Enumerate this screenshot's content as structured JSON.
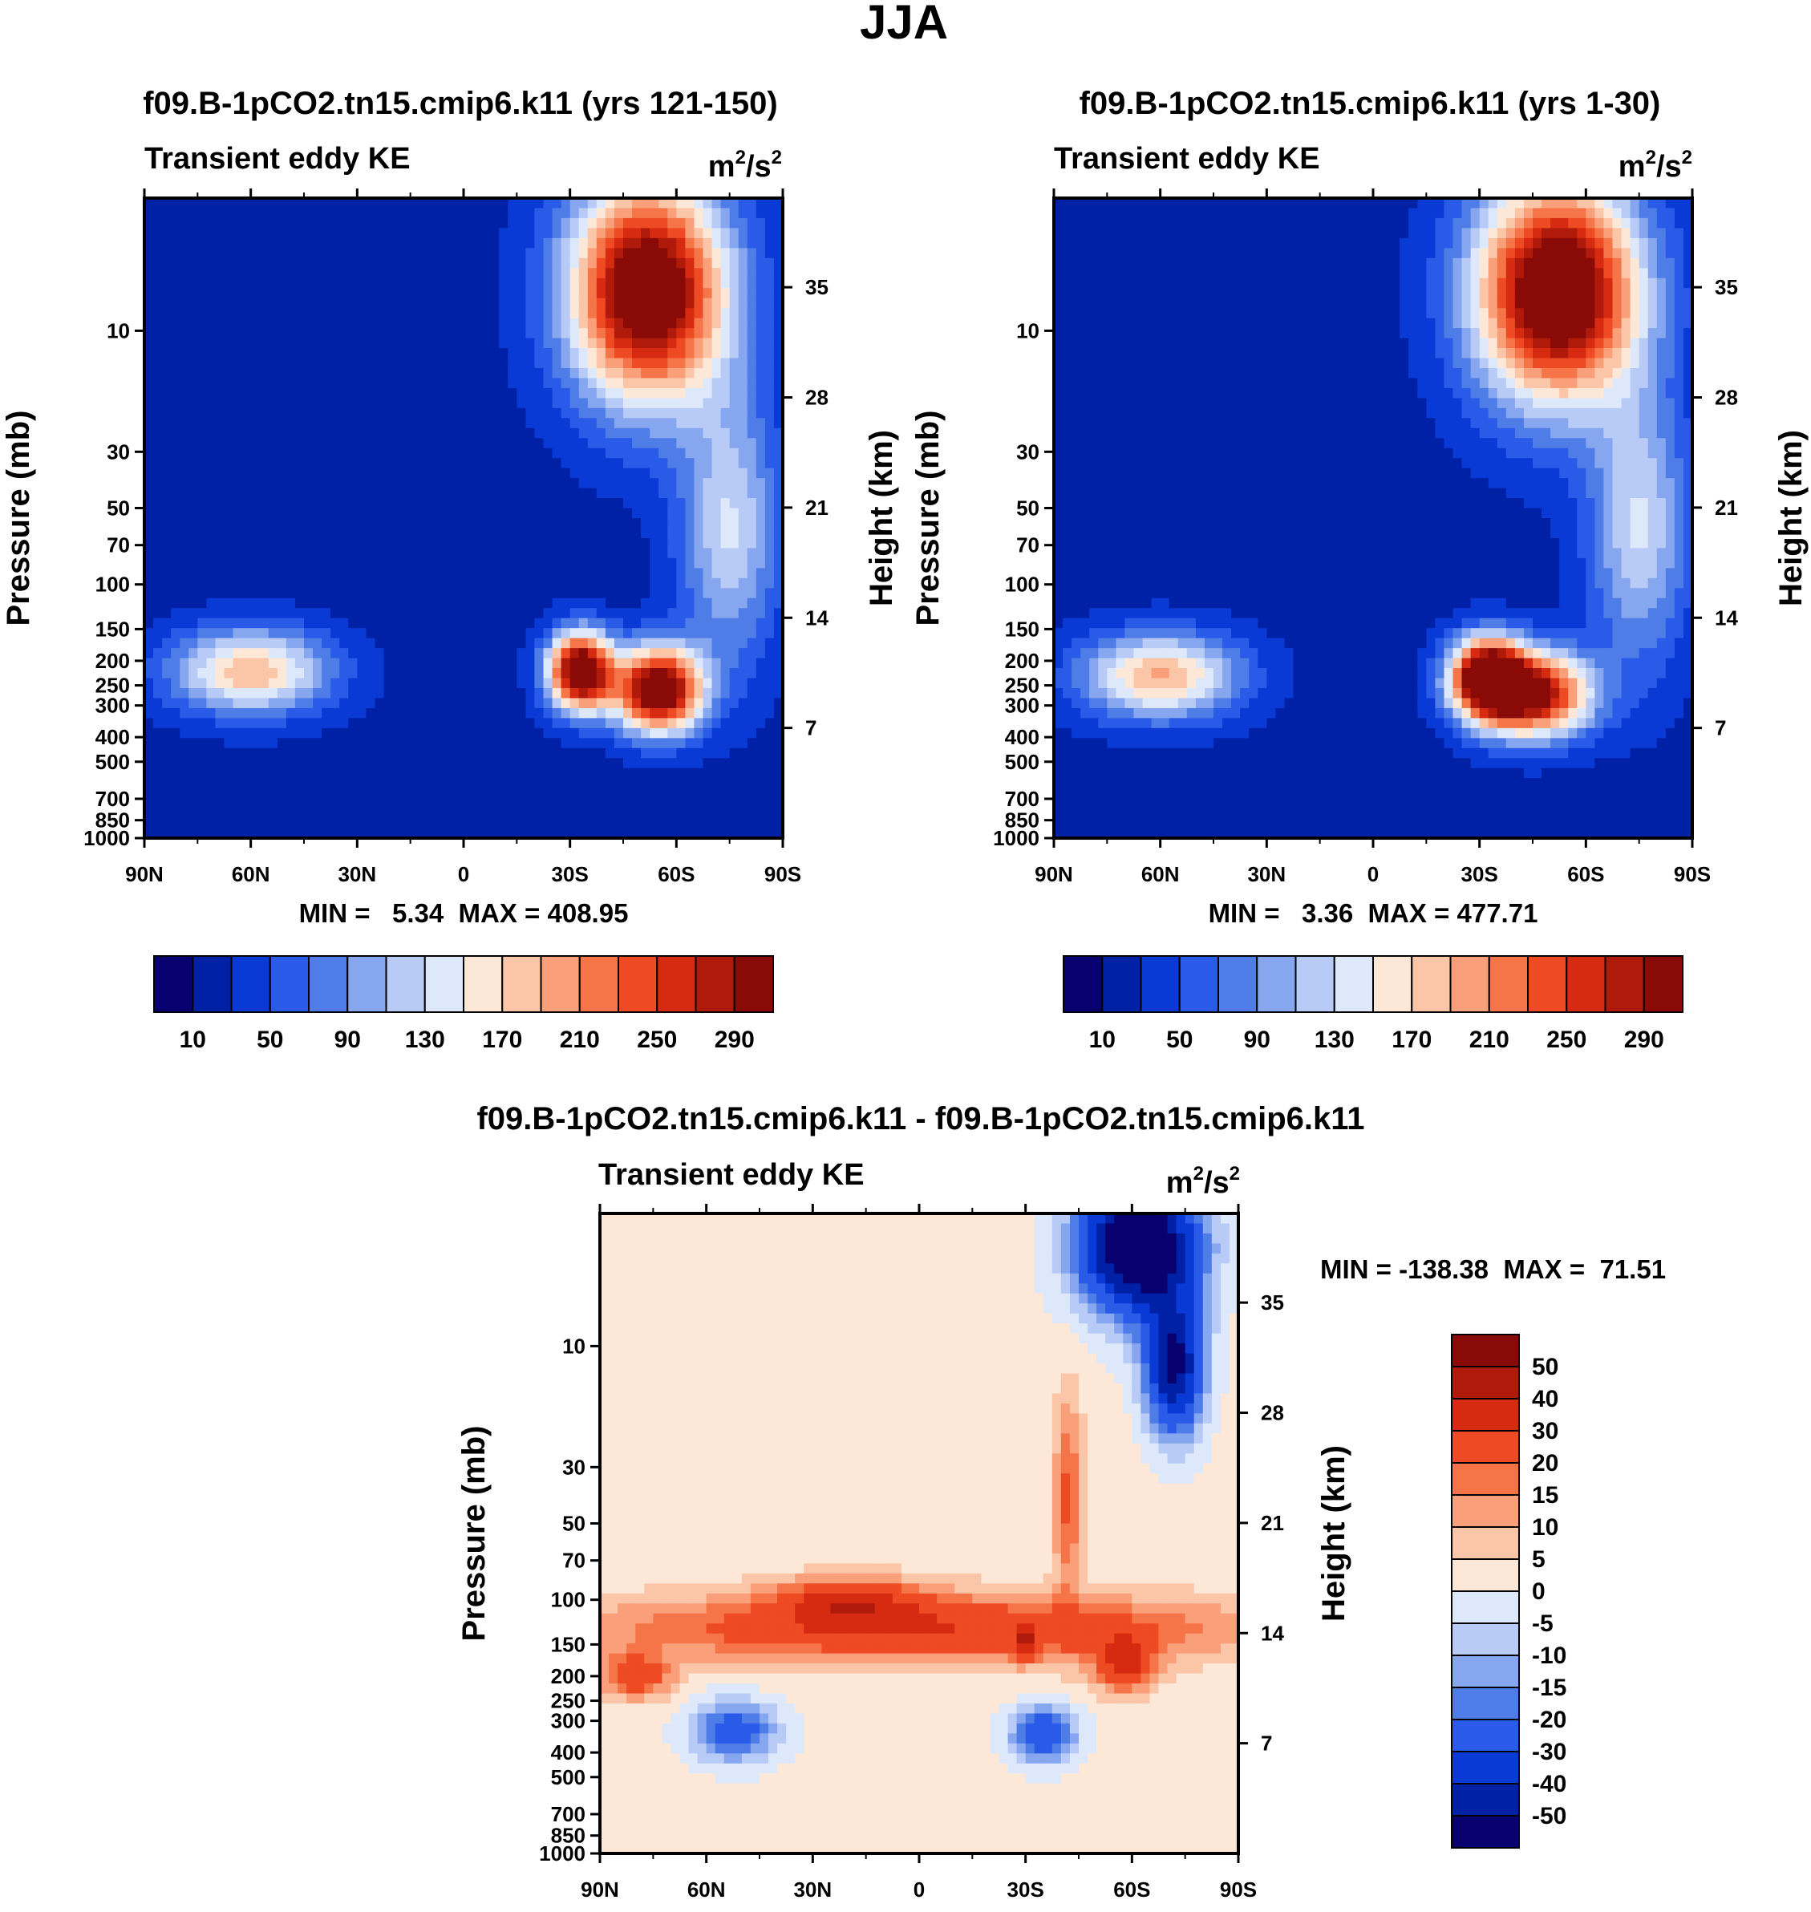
{
  "figure": {
    "title": "JJA",
    "palette_14": [
      "#08006e",
      "#0021a6",
      "#0a3ad6",
      "#2a5ae8",
      "#4f7de8",
      "#86a6ef",
      "#b8cbf7",
      "#dde8fb",
      "#fde8d8",
      "#fbc5a8",
      "#f9a07a",
      "#f57548",
      "#ee4a23",
      "#d62b10",
      "#b01a0a",
      "#8a0a08"
    ],
    "palette_diff": [
      "#08006e",
      "#0021a6",
      "#0a3ad6",
      "#2a5ae8",
      "#4f7de8",
      "#86a6ef",
      "#b8cbf7",
      "#dde8fb",
      "#fde8d8",
      "#fbc5a8",
      "#f9a07a",
      "#f57548",
      "#ee4a23",
      "#d62b10",
      "#b01a0a",
      "#8a0a08"
    ]
  },
  "chart_data": [
    {
      "type": "heatmap",
      "title": "f09.B-1pCO2.tn15.cmip6.k11 (yrs 121-150)",
      "left_string": "Transient eddy KE",
      "units_base": "m",
      "units_exp1": "2",
      "units_mid": "/s",
      "units_exp2": "2",
      "ylabel": "Pressure (mb)",
      "ylabel_right": "Height (km)",
      "xticks": [
        "90N",
        "60N",
        "30N",
        "0",
        "30S",
        "60S",
        "90S"
      ],
      "pressure_ticks": [
        "10",
        "30",
        "50",
        "70",
        "100",
        "150",
        "200",
        "250",
        "300",
        "400",
        "500",
        "700",
        "850",
        "1000"
      ],
      "pressure_values": [
        10,
        30,
        50,
        70,
        100,
        150,
        200,
        250,
        300,
        400,
        500,
        700,
        850,
        1000
      ],
      "height_ticks": [
        "35",
        "28",
        "21",
        "14",
        "7"
      ],
      "height_values": [
        35,
        28,
        21,
        14,
        7
      ],
      "xlim": [
        -90,
        90
      ],
      "ylim_mb": [
        1000,
        3
      ],
      "min_label": "MIN =   5.34  MAX = 408.95",
      "min": 5.34,
      "max": 408.95,
      "levels": [
        10,
        30,
        50,
        70,
        90,
        110,
        130,
        150,
        170,
        190,
        210,
        230,
        250,
        270,
        290
      ],
      "colorbar_labels": [
        "10",
        "50",
        "90",
        "130",
        "170",
        "210",
        "250",
        "290"
      ],
      "features": [
        {
          "lat": 52,
          "p": 7,
          "value": 330,
          "rx": 22,
          "ry": 1.0
        },
        {
          "lat": 33,
          "p": 220,
          "value": 330,
          "rx": 9,
          "ry": 0.35
        },
        {
          "lat": 55,
          "p": 260,
          "value": 330,
          "rx": 12,
          "ry": 0.38
        },
        {
          "lat": -60,
          "p": 220,
          "value": 165,
          "rx": 22,
          "ry": 0.38
        },
        {
          "lat": 75,
          "p": 60,
          "value": 110,
          "rx": 14,
          "ry": 1.2
        }
      ]
    },
    {
      "type": "heatmap",
      "title": "f09.B-1pCO2.tn15.cmip6.k11 (yrs 1-30)",
      "left_string": "Transient eddy KE",
      "units_base": "m",
      "units_exp1": "2",
      "units_mid": "/s",
      "units_exp2": "2",
      "ylabel": "Pressure (mb)",
      "ylabel_right": "Height (km)",
      "xticks": [
        "90N",
        "60N",
        "30N",
        "0",
        "30S",
        "60S",
        "90S"
      ],
      "pressure_ticks": [
        "10",
        "30",
        "50",
        "70",
        "100",
        "150",
        "200",
        "250",
        "300",
        "400",
        "500",
        "700",
        "850",
        "1000"
      ],
      "pressure_values": [
        10,
        30,
        50,
        70,
        100,
        150,
        200,
        250,
        300,
        400,
        500,
        700,
        850,
        1000
      ],
      "height_ticks": [
        "35",
        "28",
        "21",
        "14",
        "7"
      ],
      "height_values": [
        35,
        28,
        21,
        14,
        7
      ],
      "xlim": [
        -90,
        90
      ],
      "ylim_mb": [
        1000,
        3
      ],
      "min_label": "MIN =   3.36  MAX = 477.71",
      "min": 3.36,
      "max": 477.71,
      "levels": [
        10,
        30,
        50,
        70,
        90,
        110,
        130,
        150,
        170,
        190,
        210,
        230,
        250,
        270,
        290
      ],
      "colorbar_labels": [
        "10",
        "50",
        "90",
        "130",
        "170",
        "210",
        "250",
        "290"
      ],
      "features": [
        {
          "lat": 52,
          "p": 7,
          "value": 340,
          "rx": 23,
          "ry": 1.0
        },
        {
          "lat": 32,
          "p": 230,
          "value": 300,
          "rx": 10,
          "ry": 0.35
        },
        {
          "lat": 45,
          "p": 270,
          "value": 290,
          "rx": 16,
          "ry": 0.38
        },
        {
          "lat": -60,
          "p": 230,
          "value": 170,
          "rx": 22,
          "ry": 0.38
        },
        {
          "lat": 75,
          "p": 60,
          "value": 110,
          "rx": 14,
          "ry": 1.2
        }
      ]
    },
    {
      "type": "heatmap",
      "title": "f09.B-1pCO2.tn15.cmip6.k11 - f09.B-1pCO2.tn15.cmip6.k11",
      "left_string": "Transient eddy KE",
      "units_base": "m",
      "units_exp1": "2",
      "units_mid": "/s",
      "units_exp2": "2",
      "ylabel": "Pressure (mb)",
      "ylabel_right": "Height (km)",
      "xticks": [
        "90N",
        "60N",
        "30N",
        "0",
        "30S",
        "60S",
        "90S"
      ],
      "pressure_ticks": [
        "10",
        "30",
        "50",
        "70",
        "100",
        "150",
        "200",
        "250",
        "300",
        "400",
        "500",
        "700",
        "850",
        "1000"
      ],
      "pressure_values": [
        10,
        30,
        50,
        70,
        100,
        150,
        200,
        250,
        300,
        400,
        500,
        700,
        850,
        1000
      ],
      "height_ticks": [
        "35",
        "28",
        "21",
        "14",
        "7"
      ],
      "height_values": [
        35,
        28,
        21,
        14,
        7
      ],
      "xlim": [
        -90,
        90
      ],
      "ylim_mb": [
        1000,
        3
      ],
      "min_label": "MIN = -138.38  MAX =  71.51",
      "min": -138.38,
      "max": 71.51,
      "levels": [
        -50,
        -40,
        -30,
        -20,
        -15,
        -10,
        -5,
        0,
        5,
        10,
        15,
        20,
        30,
        40,
        50
      ],
      "colorbar_labels": [
        "50",
        "40",
        "30",
        "20",
        "15",
        "10",
        "5",
        "0",
        "-5",
        "-10",
        "-15",
        "-20",
        "-30",
        "-40",
        "-50"
      ],
      "features": [
        {
          "lat": 0,
          "p": 130,
          "value": 28,
          "rx": 90,
          "ry": 0.3
        },
        {
          "lat": -20,
          "p": 100,
          "value": 25,
          "rx": 20,
          "ry": 0.2
        },
        {
          "lat": -80,
          "p": 200,
          "value": 25,
          "rx": 10,
          "ry": 0.2
        },
        {
          "lat": 30,
          "p": 150,
          "value": 22,
          "rx": 3,
          "ry": 0.15
        },
        {
          "lat": 58,
          "p": 180,
          "value": 30,
          "rx": 8,
          "ry": 0.25
        },
        {
          "lat": 42,
          "p": 40,
          "value": 20,
          "rx": 4,
          "ry": 0.9
        },
        {
          "lat": 62,
          "p": 4,
          "value": -75,
          "rx": 16,
          "ry": 0.6
        },
        {
          "lat": 72,
          "p": 12,
          "value": -55,
          "rx": 8,
          "ry": 0.6
        },
        {
          "lat": -52,
          "p": 330,
          "value": -28,
          "rx": 12,
          "ry": 0.28
        },
        {
          "lat": 35,
          "p": 340,
          "value": -32,
          "rx": 9,
          "ry": 0.25
        }
      ]
    }
  ]
}
